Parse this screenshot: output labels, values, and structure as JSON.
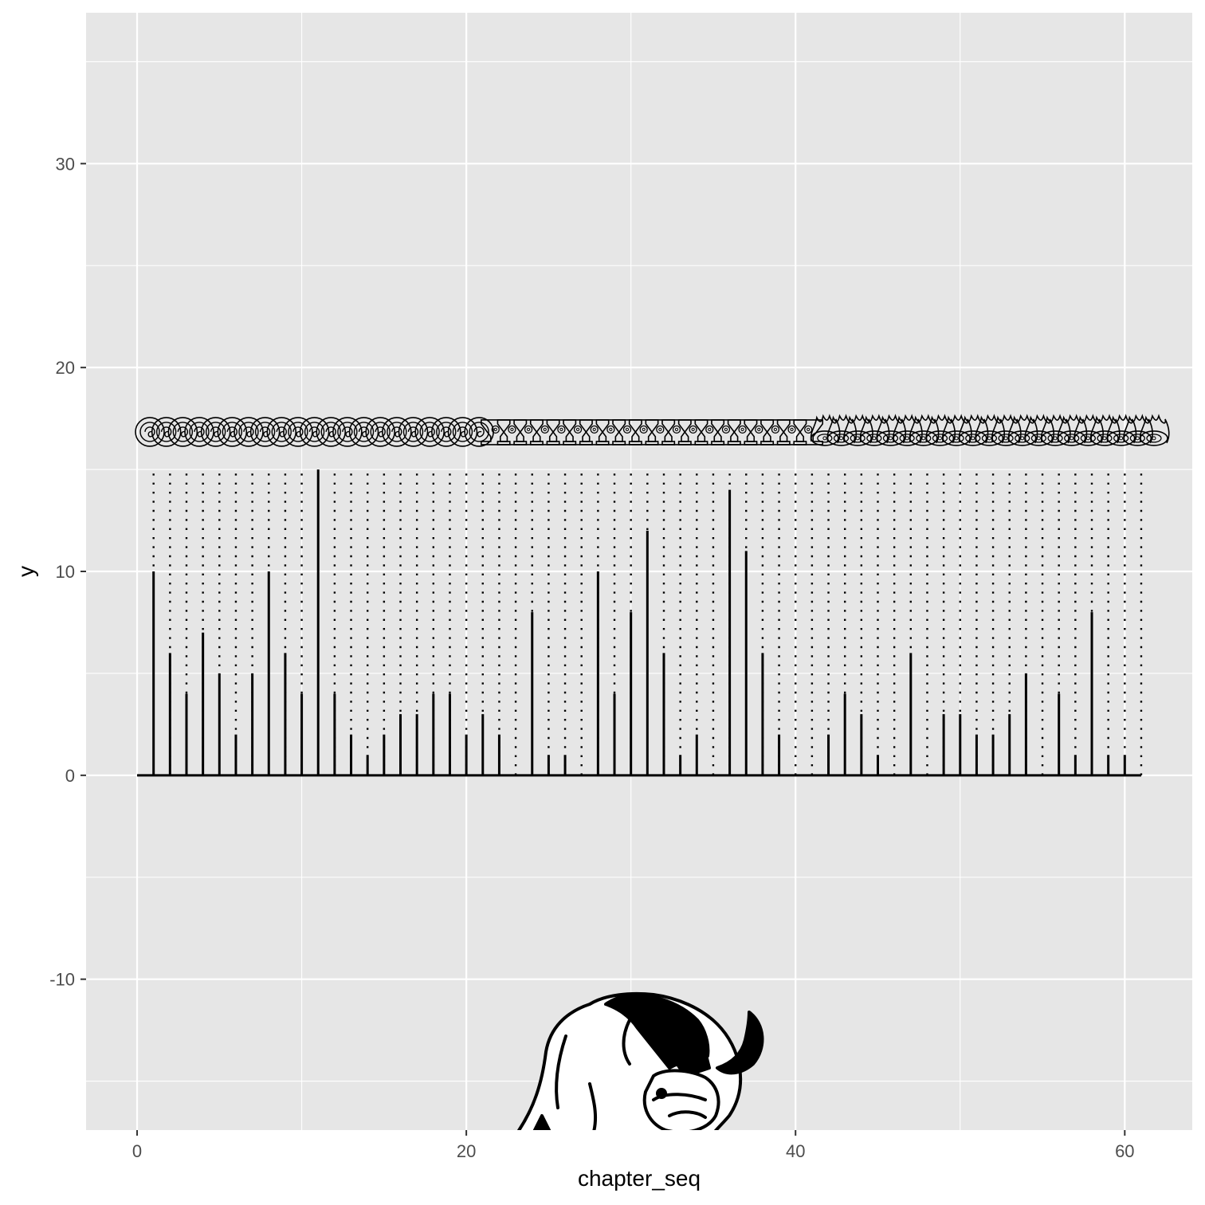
{
  "chart_data": {
    "type": "bar",
    "title": "",
    "xlabel": "chapter_seq",
    "ylabel": "y",
    "xlim": [
      -3.1,
      64.1
    ],
    "ylim": [
      -17.4,
      37.4
    ],
    "x_ticks": [
      0,
      20,
      40,
      60
    ],
    "y_ticks": [
      -10,
      0,
      10,
      20,
      30
    ],
    "x_tick_labels": [
      "0",
      "20",
      "40",
      "60"
    ],
    "y_tick_labels": [
      "-10",
      "0",
      "10",
      "20",
      "30"
    ],
    "grid": true,
    "background": "#e6e6e6",
    "grid_color": "#ffffff",
    "mark_color": "#000000",
    "chapters": [
      1,
      2,
      3,
      4,
      5,
      6,
      7,
      8,
      9,
      10,
      11,
      12,
      13,
      14,
      15,
      16,
      17,
      18,
      19,
      20,
      21,
      22,
      23,
      24,
      25,
      26,
      27,
      28,
      29,
      30,
      31,
      32,
      33,
      34,
      35,
      36,
      37,
      38,
      39,
      40,
      41,
      42,
      43,
      44,
      45,
      46,
      47,
      48,
      49,
      50,
      51,
      52,
      53,
      54,
      55,
      56,
      57,
      58,
      59,
      60,
      61
    ],
    "values": [
      10,
      6,
      4,
      7,
      5,
      2,
      5,
      10,
      6,
      4,
      15,
      4,
      2,
      1,
      2,
      3,
      3,
      4,
      4,
      2,
      3,
      2,
      0,
      8,
      1,
      1,
      0,
      10,
      4,
      8,
      12,
      6,
      1,
      2,
      0,
      14,
      11,
      6,
      2,
      0,
      0,
      2,
      4,
      3,
      1,
      0,
      6,
      0,
      3,
      3,
      2,
      2,
      3,
      5,
      0,
      4,
      1,
      8,
      1,
      1,
      0
    ],
    "dotted_guide_top": 14.8,
    "baseline": 0,
    "symbol_row_y": 17,
    "symbol_groups": [
      {
        "symbol": "air-symbol-icon",
        "from": 0,
        "to": 20
      },
      {
        "symbol": "water-symbol-icon",
        "from": 21,
        "to": 40
      },
      {
        "symbol": "fire-symbol-icon",
        "from": 41,
        "to": 61
      }
    ],
    "decoration": "sky-bison-icon"
  }
}
